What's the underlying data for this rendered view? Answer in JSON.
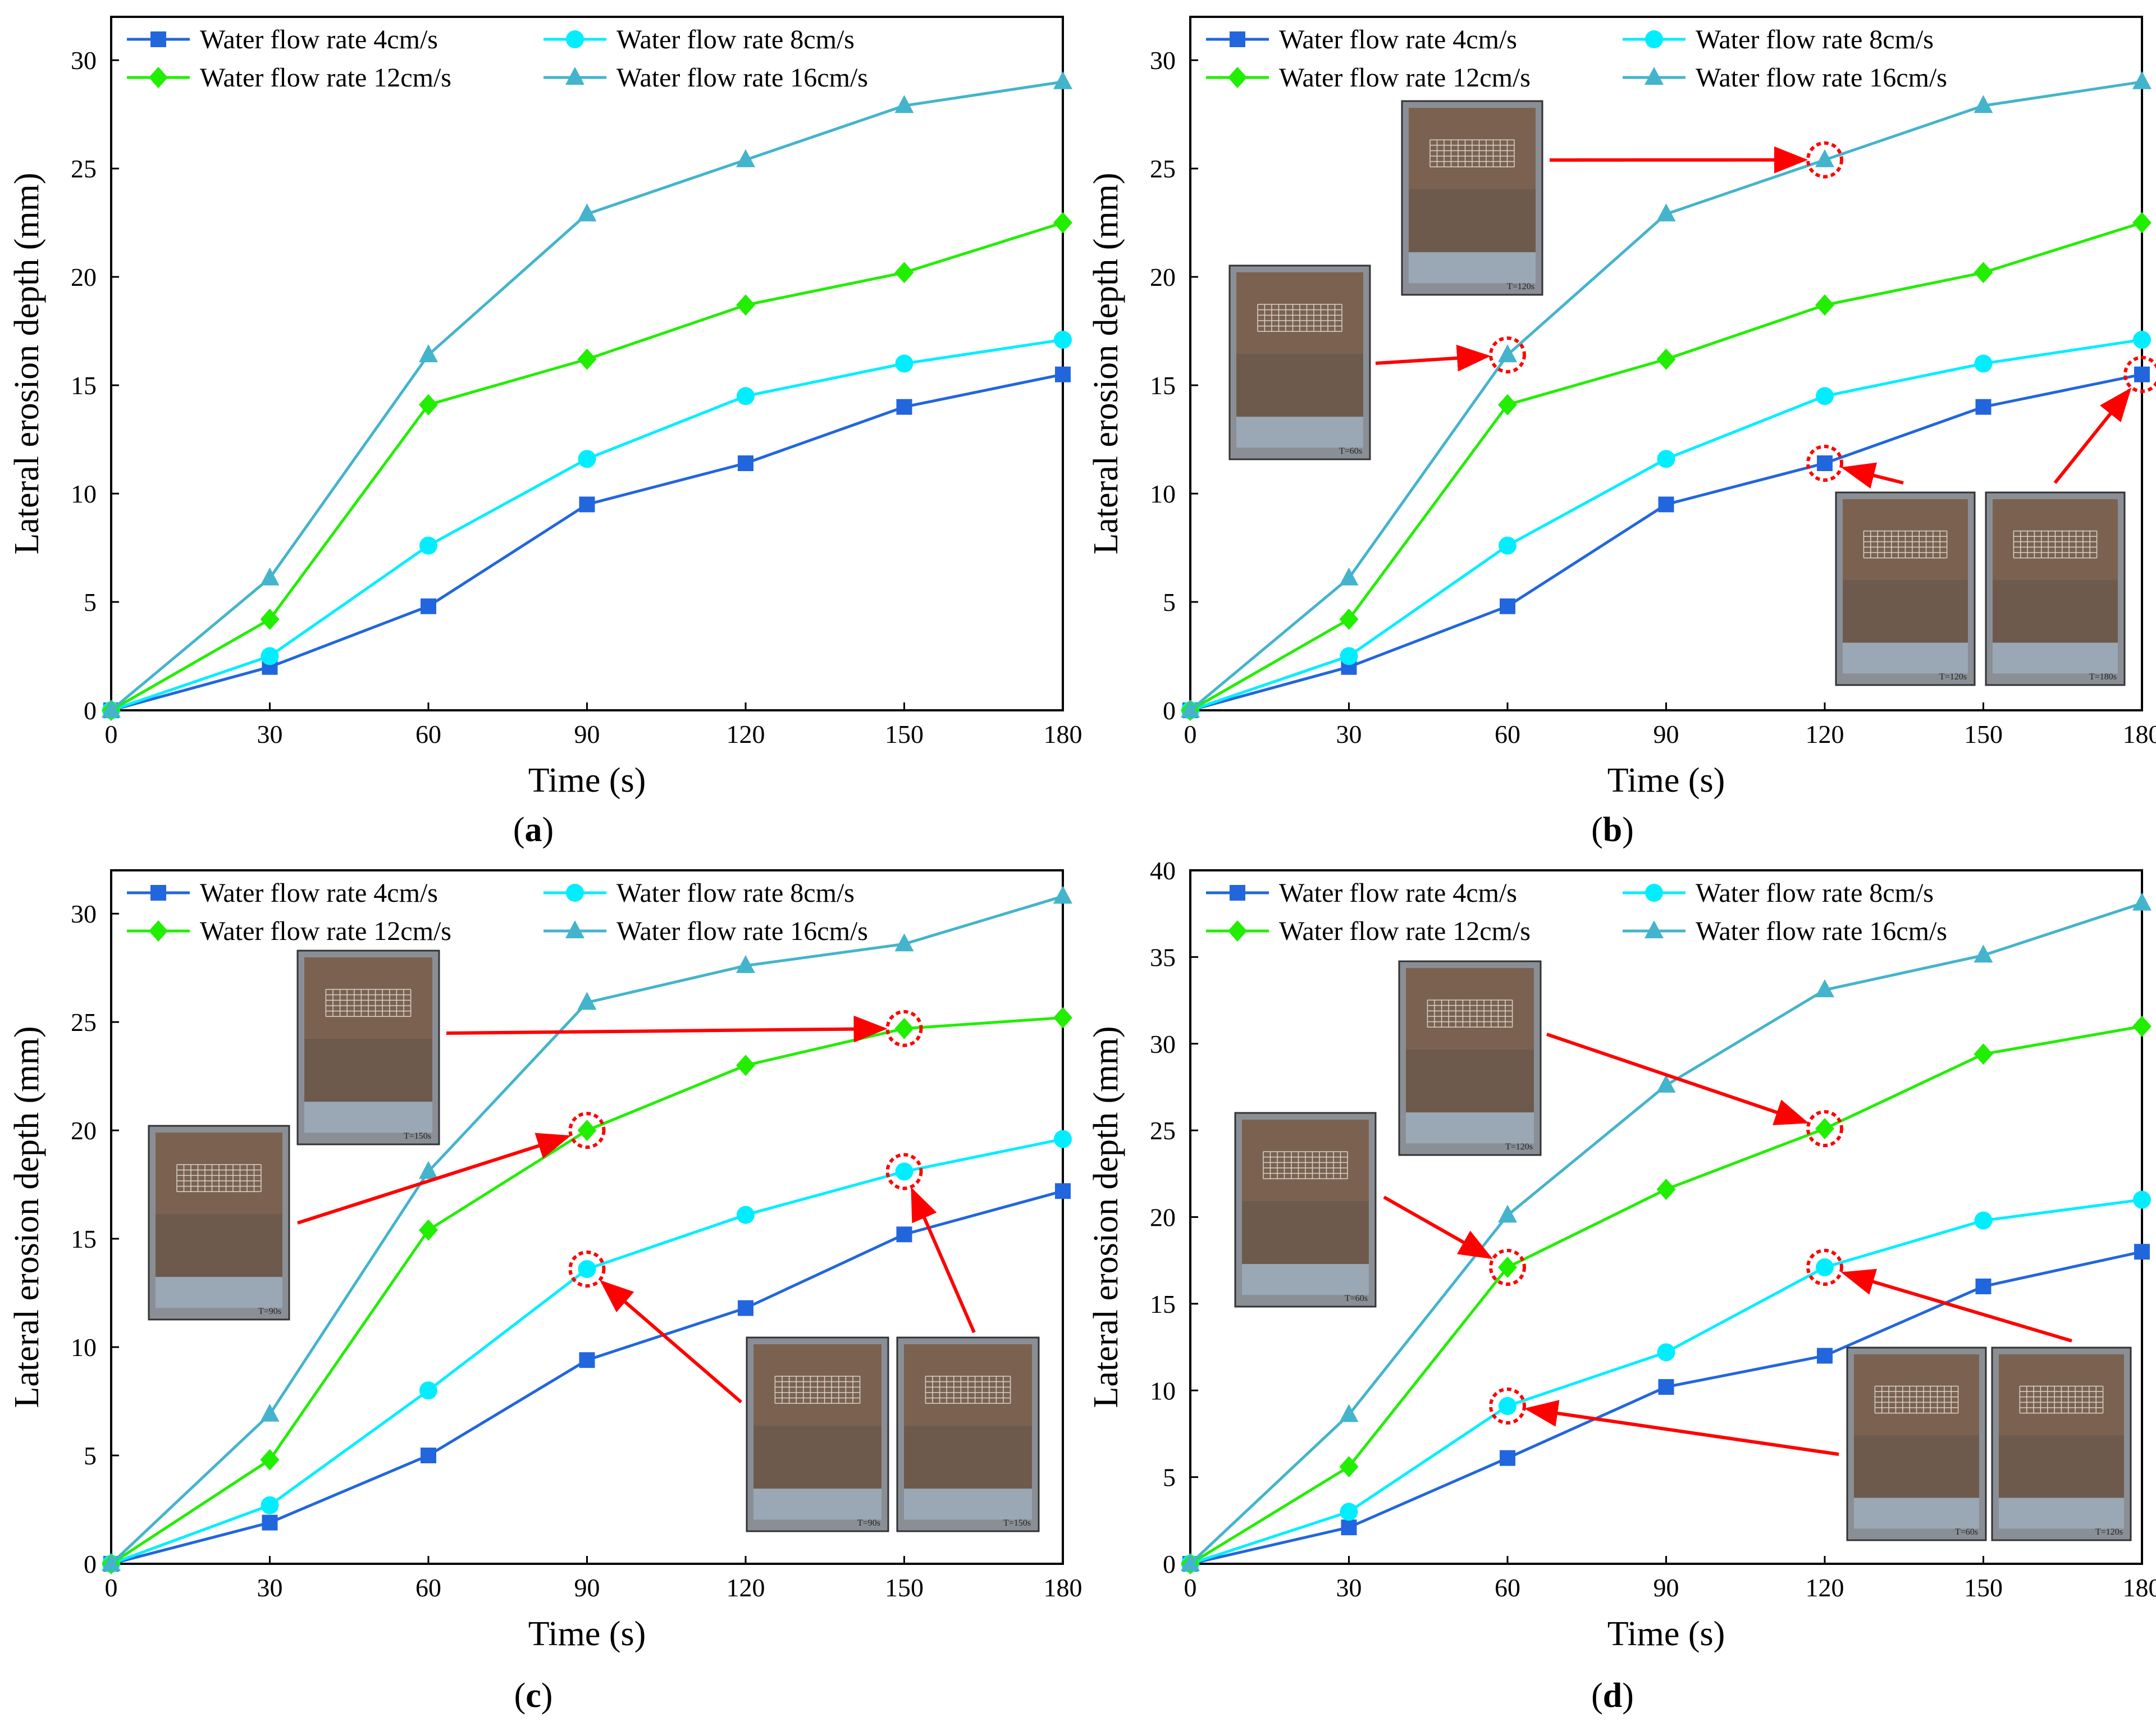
{
  "figure": {
    "series_styles": [
      {
        "color": "#2266dd",
        "marker": "square"
      },
      {
        "color": "#00eeff",
        "marker": "circle"
      },
      {
        "color": "#22ee00",
        "marker": "diamond"
      },
      {
        "color": "#44b4cc",
        "marker": "triangle"
      }
    ],
    "highlight_color": "#ff0000"
  },
  "chart_data": [
    {
      "id": "a",
      "caption": "(a)",
      "caption_letter": "a",
      "type": "line",
      "xlabel": "Time (s)",
      "ylabel": "Lateral erosion depth (mm)",
      "x": [
        0,
        30,
        60,
        90,
        120,
        150,
        180
      ],
      "xticks": [
        0,
        30,
        60,
        90,
        120,
        150,
        180
      ],
      "xlim": [
        0,
        180
      ],
      "ylim": [
        0,
        32
      ],
      "yticks": [
        0,
        5,
        10,
        15,
        20,
        25,
        30
      ],
      "series": [
        {
          "name": "Water flow rate 4cm/s",
          "values": [
            0,
            2.0,
            4.8,
            9.5,
            11.4,
            14.0,
            15.5
          ]
        },
        {
          "name": "Water flow rate 8cm/s",
          "values": [
            0,
            2.5,
            7.6,
            11.6,
            14.5,
            16.0,
            17.1
          ]
        },
        {
          "name": "Water flow rate 12cm/s",
          "values": [
            0,
            4.2,
            14.1,
            16.2,
            18.7,
            20.2,
            22.5
          ]
        },
        {
          "name": "Water flow rate 16cm/s",
          "values": [
            0,
            6.1,
            16.4,
            22.9,
            25.4,
            27.9,
            29.0
          ]
        }
      ],
      "annotations": []
    },
    {
      "id": "b",
      "caption": "(b)",
      "caption_letter": "b",
      "type": "line",
      "xlabel": "Time (s)",
      "ylabel": "Lateral erosion depth (mm)",
      "x": [
        0,
        30,
        60,
        90,
        120,
        150,
        180
      ],
      "xticks": [
        0,
        30,
        60,
        90,
        120,
        150,
        180
      ],
      "xlim": [
        0,
        180
      ],
      "ylim": [
        0,
        32
      ],
      "yticks": [
        0,
        5,
        10,
        15,
        20,
        25,
        30
      ],
      "series": [
        {
          "name": "Water flow rate 4cm/s",
          "values": [
            0,
            2.0,
            4.8,
            9.5,
            11.4,
            14.0,
            15.5
          ]
        },
        {
          "name": "Water flow rate 8cm/s",
          "values": [
            0,
            2.5,
            7.6,
            11.6,
            14.5,
            16.0,
            17.1
          ]
        },
        {
          "name": "Water flow rate 12cm/s",
          "values": [
            0,
            4.2,
            14.1,
            16.2,
            18.7,
            20.2,
            22.5
          ]
        },
        {
          "name": "Water flow rate 16cm/s",
          "values": [
            0,
            6.1,
            16.4,
            22.9,
            25.4,
            27.9,
            29.0
          ]
        }
      ],
      "annotations": [
        {
          "label": "T=120s",
          "series": 3,
          "point": 4
        },
        {
          "label": "T=60s",
          "series": 3,
          "point": 2
        },
        {
          "label": "T=120s",
          "series": 0,
          "point": 4
        },
        {
          "label": "T=180s",
          "series": 0,
          "point": 6
        }
      ]
    },
    {
      "id": "c",
      "caption": "(c)",
      "caption_letter": "c",
      "type": "line",
      "xlabel": "Time (s)",
      "ylabel": "Lateral erosion depth (mm)",
      "x": [
        0,
        30,
        60,
        90,
        120,
        150,
        180
      ],
      "xticks": [
        0,
        30,
        60,
        90,
        120,
        150,
        180
      ],
      "xlim": [
        0,
        180
      ],
      "ylim": [
        0,
        32
      ],
      "yticks": [
        0,
        5,
        10,
        15,
        20,
        25,
        30
      ],
      "series": [
        {
          "name": "Water flow rate 4cm/s",
          "values": [
            0,
            1.9,
            5.0,
            9.4,
            11.8,
            15.2,
            17.2
          ]
        },
        {
          "name": "Water flow rate 8cm/s",
          "values": [
            0,
            2.7,
            8.0,
            13.6,
            16.1,
            18.1,
            19.6
          ]
        },
        {
          "name": "Water flow rate 12cm/s",
          "values": [
            0,
            4.8,
            15.4,
            20.0,
            23.0,
            24.7,
            25.2
          ]
        },
        {
          "name": "Water flow rate 16cm/s",
          "values": [
            0,
            6.9,
            18.1,
            25.9,
            27.6,
            28.6,
            30.8
          ]
        }
      ],
      "annotations": [
        {
          "label": "T=150s",
          "series": 2,
          "point": 5
        },
        {
          "label": "T=90s",
          "series": 2,
          "point": 3
        },
        {
          "label": "T=90s",
          "series": 1,
          "point": 3
        },
        {
          "label": "T=150s",
          "series": 1,
          "point": 5
        }
      ]
    },
    {
      "id": "d",
      "caption": "(d)",
      "caption_letter": "d",
      "type": "line",
      "xlabel": "Time (s)",
      "ylabel": "Lateral erosion depth (mm)",
      "x": [
        0,
        30,
        60,
        90,
        120,
        150,
        180
      ],
      "xticks": [
        0,
        30,
        60,
        90,
        120,
        150,
        180
      ],
      "xlim": [
        0,
        180
      ],
      "ylim": [
        0,
        40
      ],
      "yticks": [
        0,
        5,
        10,
        15,
        20,
        25,
        30,
        35,
        40
      ],
      "series": [
        {
          "name": "Water flow rate 4cm/s",
          "values": [
            0,
            2.1,
            6.1,
            10.2,
            12.0,
            16.0,
            18.0
          ]
        },
        {
          "name": "Water flow rate 8cm/s",
          "values": [
            0,
            3.0,
            9.1,
            12.2,
            17.1,
            19.8,
            21.0
          ]
        },
        {
          "name": "Water flow rate 12cm/s",
          "values": [
            0,
            5.6,
            17.1,
            21.6,
            25.1,
            29.4,
            31.0
          ]
        },
        {
          "name": "Water flow rate 16cm/s",
          "values": [
            0,
            8.6,
            20.1,
            27.6,
            33.1,
            35.1,
            38.1
          ]
        }
      ],
      "annotations": [
        {
          "label": "T=120s",
          "series": 2,
          "point": 4
        },
        {
          "label": "T=60s",
          "series": 2,
          "point": 2
        },
        {
          "label": "T=60s",
          "series": 1,
          "point": 2
        },
        {
          "label": "T=120s",
          "series": 1,
          "point": 4
        }
      ]
    }
  ]
}
